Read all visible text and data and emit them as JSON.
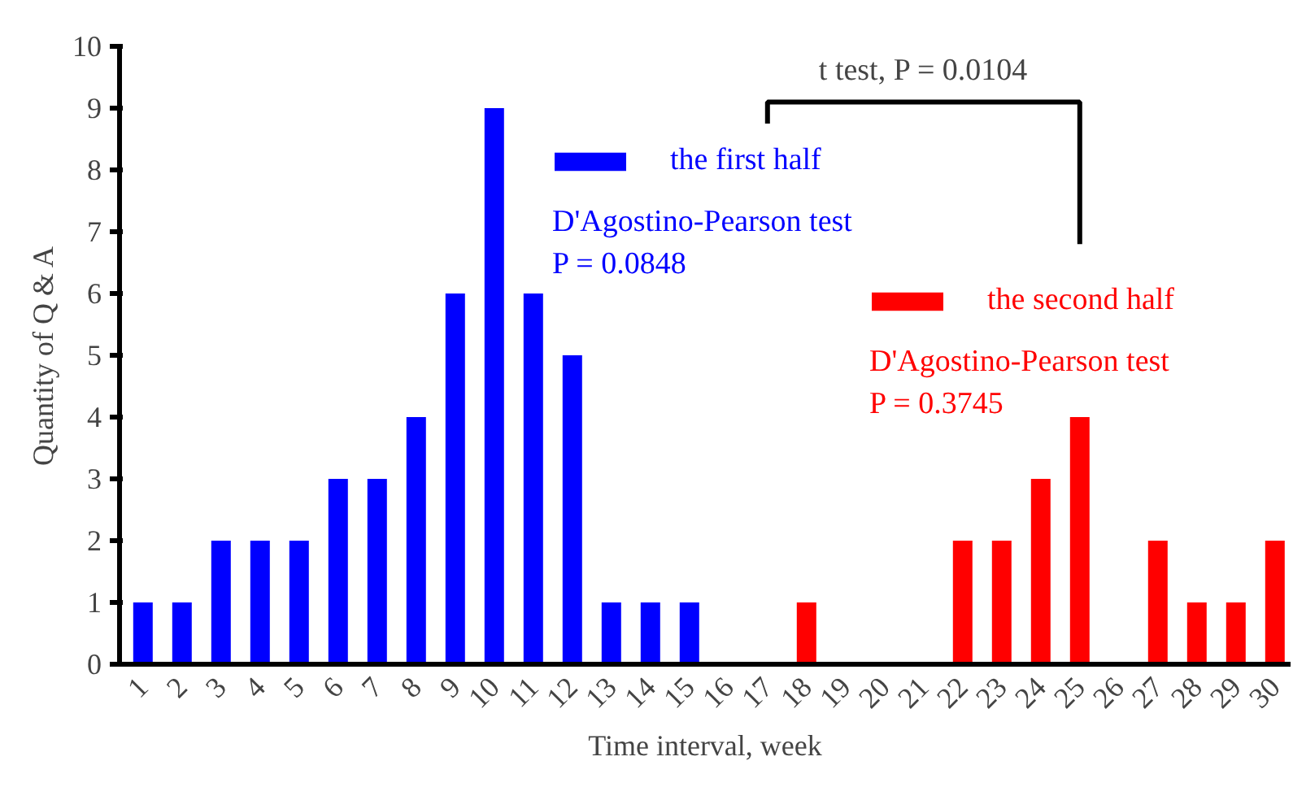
{
  "chart_data": {
    "type": "bar",
    "xlabel": "Time interval, week",
    "ylabel": "Quantity of Q & A",
    "categories": [
      "1",
      "2",
      "3",
      "4",
      "5",
      "6",
      "7",
      "8",
      "9",
      "10",
      "11",
      "12",
      "13",
      "14",
      "15",
      "16",
      "17",
      "18",
      "19",
      "20",
      "21",
      "22",
      "23",
      "24",
      "25",
      "26",
      "27",
      "28",
      "29",
      "30"
    ],
    "series": [
      {
        "name": "the first half",
        "color": "#0000ff",
        "values": [
          1,
          1,
          2,
          2,
          2,
          3,
          3,
          4,
          6,
          9,
          6,
          5,
          1,
          1,
          1,
          null,
          null,
          null,
          null,
          null,
          null,
          null,
          null,
          null,
          null,
          null,
          null,
          null,
          null,
          null
        ]
      },
      {
        "name": "the second half",
        "color": "#ff0000",
        "values": [
          null,
          null,
          null,
          null,
          null,
          null,
          null,
          null,
          null,
          null,
          null,
          null,
          null,
          null,
          null,
          0,
          0,
          1,
          0,
          0,
          0,
          2,
          2,
          3,
          4,
          0,
          2,
          1,
          1,
          2
        ]
      }
    ],
    "ylim": [
      0,
      10
    ],
    "yticks": [
      0,
      1,
      2,
      3,
      4,
      5,
      6,
      7,
      8,
      9,
      10
    ],
    "grid": false,
    "legend": "top",
    "annotations": [
      "t test, P = 0.0104",
      "D'Agostino-Pearson test",
      "P = 0.0848",
      "D'Agostino-Pearson test",
      "P = 0.3745"
    ]
  }
}
